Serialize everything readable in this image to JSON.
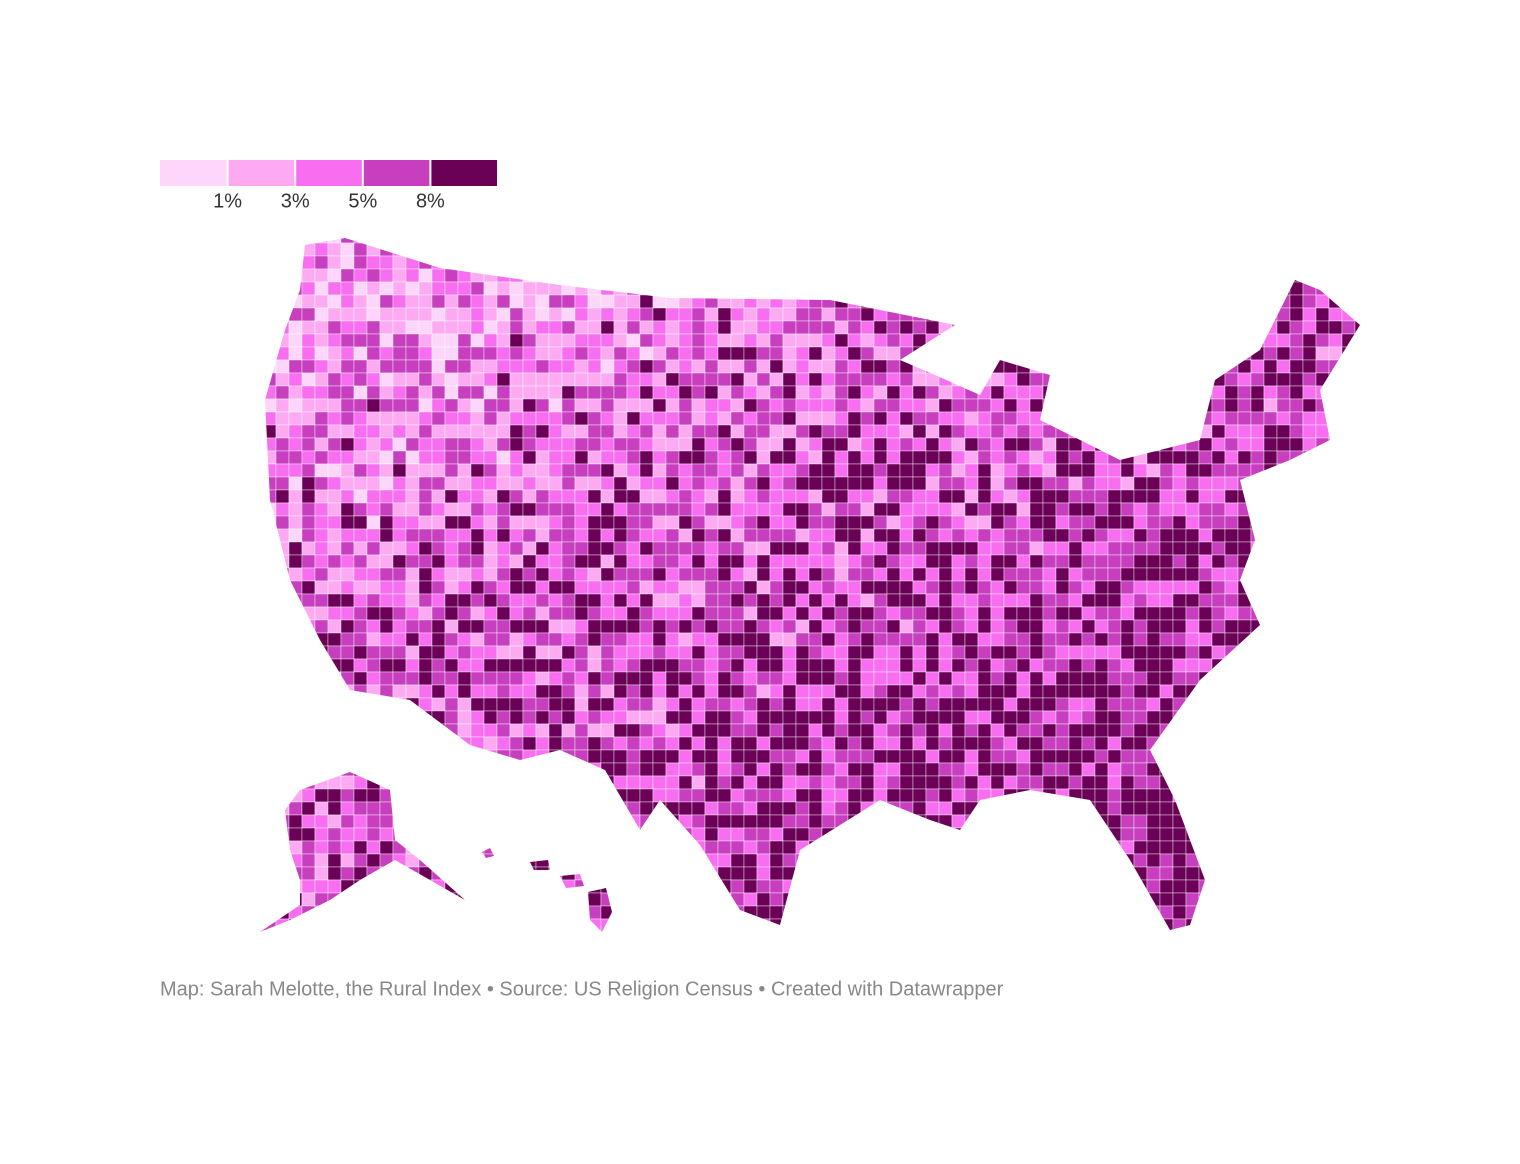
{
  "legend": {
    "colors": [
      "#ffd6fb",
      "#fdaaf3",
      "#f86ef0",
      "#c73fbf",
      "#6b0057"
    ],
    "ticks": [
      {
        "value": 1,
        "label": "1%"
      },
      {
        "value": 3,
        "label": "3%"
      },
      {
        "value": 5,
        "label": "5%"
      },
      {
        "value": 8,
        "label": "8%"
      }
    ]
  },
  "footer": {
    "source": "Map: Sarah Melotte, the Rural Index • Source: US Religion Census • Created with Datawrapper"
  }
}
